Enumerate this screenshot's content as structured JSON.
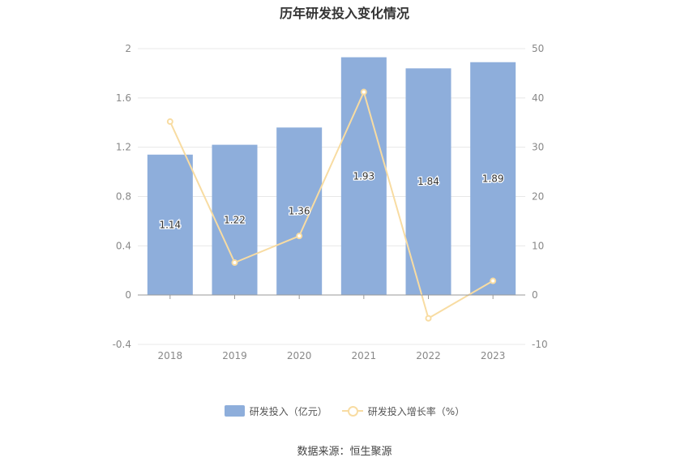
{
  "title": "历年研发投入变化情况",
  "source": "数据来源：恒生聚源",
  "legend": {
    "bar_label": "研发投入（亿元）",
    "line_label": "研发投入增长率（%）"
  },
  "colors": {
    "bar": "#8eaedb",
    "line": "#f8dca2",
    "grid": "#e8e8e8",
    "axis": "#999999"
  },
  "chart_data": {
    "type": "bar",
    "categories": [
      "2018",
      "2019",
      "2020",
      "2021",
      "2022",
      "2023"
    ],
    "series": [
      {
        "name": "研发投入（亿元）",
        "type": "bar",
        "axis": "left",
        "values": [
          1.14,
          1.22,
          1.36,
          1.93,
          1.84,
          1.89
        ]
      },
      {
        "name": "研发投入增长率（%）",
        "type": "line",
        "axis": "right",
        "values": [
          35.2,
          6.6,
          12.0,
          41.2,
          -4.7,
          2.9
        ]
      }
    ],
    "left_axis": {
      "min": -0.4,
      "max": 2,
      "ticks": [
        "-0.4",
        "0",
        "0.4",
        "0.8",
        "1.2",
        "1.6",
        "2"
      ]
    },
    "right_axis": {
      "min": -10,
      "max": 50,
      "ticks": [
        "-10",
        "0",
        "10",
        "20",
        "30",
        "40",
        "50"
      ]
    },
    "data_labels": [
      "1.14",
      "1.22",
      "1.36",
      "1.93",
      "1.84",
      "1.89"
    ],
    "grid": true,
    "legend_position": "bottom"
  }
}
